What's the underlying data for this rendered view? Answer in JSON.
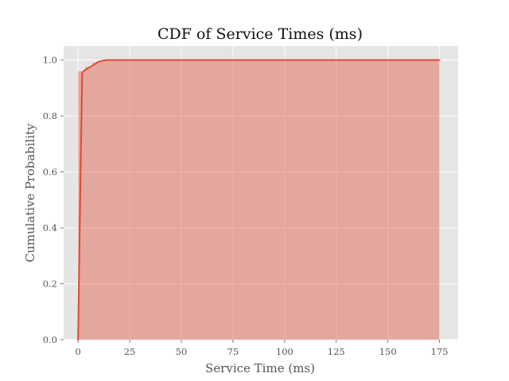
{
  "chart_data": {
    "type": "area",
    "title": "CDF of Service Times (ms)",
    "xlabel": "Service Time (ms)",
    "ylabel": "Cumulative Probability",
    "xlim": [
      -7,
      184
    ],
    "ylim": [
      0,
      1.05
    ],
    "xticks": [
      0,
      25,
      50,
      75,
      100,
      125,
      150,
      175
    ],
    "xtick_labels": [
      "0",
      "25",
      "50",
      "75",
      "100",
      "125",
      "150",
      "175"
    ],
    "yticks": [
      0.0,
      0.2,
      0.4,
      0.6,
      0.8,
      1.0
    ],
    "ytick_labels": [
      "0.0",
      "0.2",
      "0.4",
      "0.6",
      "0.8",
      "1.0"
    ],
    "grid": true,
    "legend": "none",
    "colors": {
      "panel": "#e5e5e5",
      "grid": "#ffffff",
      "line": "#e24a33",
      "fill": "#e24a33",
      "fill_opacity": 0.4
    },
    "series": [
      {
        "x": [
          0,
          1,
          2,
          3,
          4,
          5,
          6,
          7,
          8,
          9,
          10,
          11,
          12,
          13,
          14,
          15,
          17,
          20,
          30,
          50,
          100,
          150,
          175
        ],
        "y": [
          0.0,
          0.5,
          0.955,
          0.962,
          0.967,
          0.972,
          0.976,
          0.98,
          0.985,
          0.99,
          0.994,
          0.996,
          0.998,
          0.999,
          1.0,
          1.0,
          1.0,
          1.0,
          1.0,
          1.0,
          1.0,
          1.0,
          1.0
        ]
      }
    ],
    "histogram": {
      "bin_width": 3.5,
      "bins": [
        {
          "x0": 0.0,
          "y": 0.96
        },
        {
          "x0": 3.5,
          "y": 0.975
        },
        {
          "x0": 7.0,
          "y": 0.99
        },
        {
          "x0": 10.5,
          "y": 0.998
        },
        {
          "x0": 14.0,
          "y": 1.0
        }
      ],
      "tail_from": 17.5,
      "tail_to": 175,
      "tail_y": 1.0
    }
  }
}
